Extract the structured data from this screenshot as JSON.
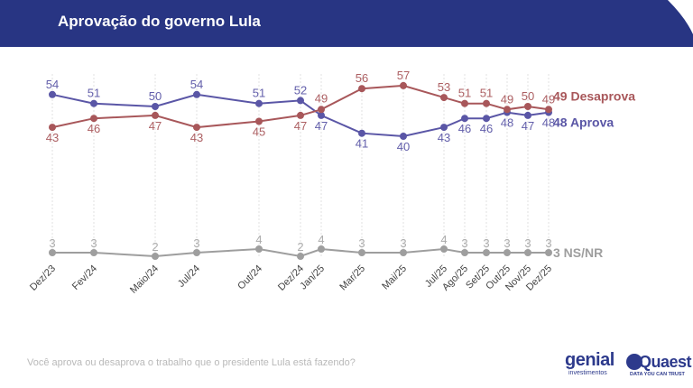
{
  "header": {
    "title": "Aprovação do governo Lula"
  },
  "footer": {
    "question": "Você aprova ou desaprova o trabalho que o presidente Lula está fazendo?",
    "logo_genial": "genial",
    "logo_genial_sub": "investimentos",
    "logo_quaest": "Quaest",
    "logo_quaest_sub": "DATA YOU CAN TRUST"
  },
  "colors": {
    "header_bg": "#283583",
    "aprova": "#5a56a6",
    "desaprova": "#a8575a",
    "nsnr": "#9e9e9e",
    "gridline": "#e2e2e2"
  },
  "chart_data": {
    "type": "line",
    "x": [
      "Dez/23",
      "Fev/24",
      "Maio/24",
      "Jul/24",
      "Out/24",
      "Dez/24",
      "Jan/25",
      "Mar/25",
      "Mai/25",
      "Jul/25",
      "Ago/25",
      "Set/25",
      "Out/25",
      "Nov/25",
      "Dez/25"
    ],
    "series": [
      {
        "name": "Aprova",
        "end_label": "48 Aprova",
        "color": "#5a56a6",
        "values": [
          54,
          51,
          50,
          54,
          51,
          52,
          47,
          41,
          40,
          43,
          46,
          46,
          48,
          47,
          48
        ]
      },
      {
        "name": "Desaprova",
        "end_label": "49 Desaprova",
        "color": "#a8575a",
        "values": [
          43,
          46,
          47,
          43,
          45,
          47,
          49,
          56,
          57,
          53,
          51,
          51,
          49,
          50,
          49
        ]
      },
      {
        "name": "NS/NR",
        "end_label": "3 NS/NR",
        "color": "#9e9e9e",
        "values": [
          3,
          3,
          2,
          3,
          4,
          2,
          4,
          3,
          3,
          4,
          3,
          3,
          3,
          3,
          3
        ]
      }
    ],
    "grid": "vertical",
    "legend": "end-of-line labels"
  }
}
